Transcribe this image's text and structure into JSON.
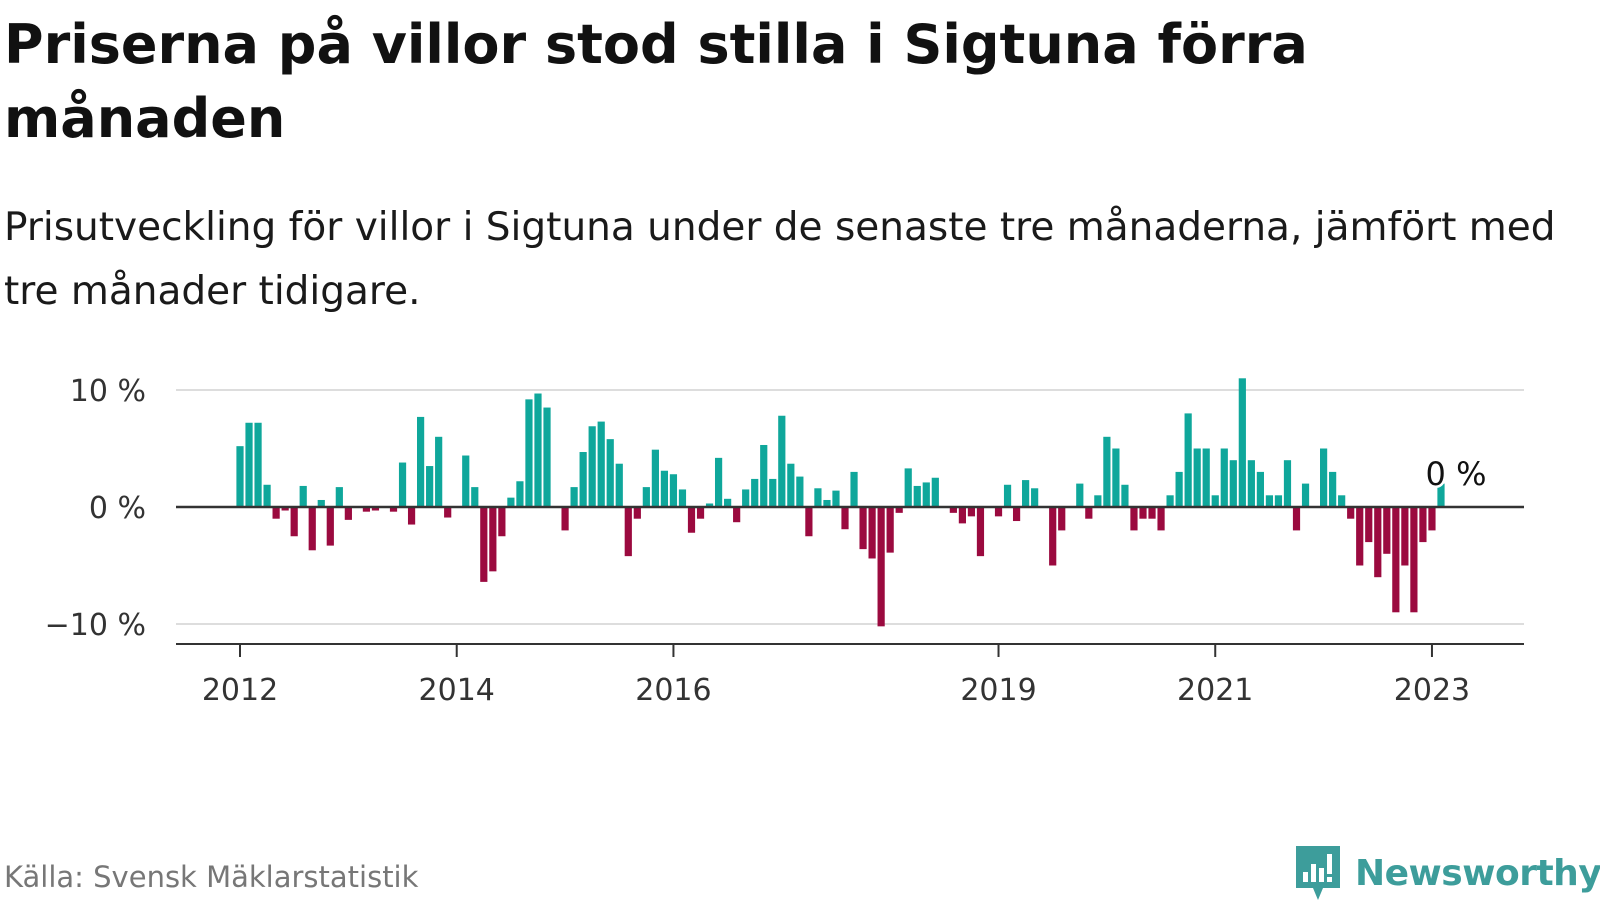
{
  "title": "Priserna på villor stod stilla i Sigtuna förra månaden",
  "subtitle": "Prisutveckling för villor i Sigtuna under de senaste tre månaderna, jämfört med tre månader tidigare.",
  "source": "Källa: Svensk Mäklarstatistik",
  "brand": "Newsworthy",
  "colors": {
    "positive": "#0fa79b",
    "negative": "#9b0a3f",
    "grid": "#dddddd",
    "zero_line": "#333333",
    "brand": "#3d9d9b"
  },
  "chart_data": {
    "type": "bar",
    "ylim": [
      -11.5,
      11
    ],
    "yticks": [
      {
        "value": 10,
        "label": "10 %"
      },
      {
        "value": 0,
        "label": "0 %"
      },
      {
        "value": -10,
        "label": "−10 %"
      }
    ],
    "xticks": [
      {
        "year": 2012,
        "index": 0
      },
      {
        "year": 2014,
        "index": 24
      },
      {
        "year": 2016,
        "index": 48
      },
      {
        "year": 2019,
        "index": 84
      },
      {
        "year": 2021,
        "index": 108
      },
      {
        "year": 2023,
        "index": 132
      }
    ],
    "annotation": {
      "index": 134,
      "label": "0 %"
    },
    "values": [
      5.2,
      7.2,
      7.2,
      1.9,
      -1.0,
      -0.3,
      -2.5,
      1.8,
      -3.7,
      0.6,
      -3.3,
      1.7,
      -1.1,
      0.0,
      -0.4,
      -0.3,
      0.0,
      -0.4,
      3.8,
      -1.5,
      7.7,
      3.5,
      6.0,
      -0.9,
      0.0,
      4.4,
      1.7,
      -6.4,
      -5.5,
      -2.5,
      0.8,
      2.2,
      9.2,
      9.7,
      8.5,
      0.0,
      -2.0,
      1.7,
      4.7,
      6.9,
      7.3,
      5.8,
      3.7,
      -4.2,
      -1.0,
      1.7,
      4.9,
      3.1,
      2.8,
      1.5,
      -2.2,
      -1.0,
      0.3,
      4.2,
      0.7,
      -1.3,
      1.5,
      2.4,
      5.3,
      2.4,
      7.8,
      3.7,
      2.6,
      -2.5,
      1.6,
      0.6,
      1.4,
      -1.9,
      3.0,
      -3.6,
      -4.4,
      -10.2,
      -3.9,
      -0.5,
      3.3,
      1.8,
      2.1,
      2.5,
      0.0,
      -0.5,
      -1.4,
      -0.8,
      -4.2,
      0.0,
      -0.8,
      1.9,
      -1.2,
      2.3,
      1.6,
      0.0,
      -5.0,
      -2.0,
      0.0,
      2.0,
      -1.0,
      1.0,
      6.0,
      5.0,
      1.9,
      -2.0,
      -1.0,
      -1.0,
      -2.0,
      1.0,
      3.0,
      8.0,
      5.0,
      5.0,
      1.0,
      5.0,
      4.0,
      11.0,
      4.0,
      3.0,
      1.0,
      1.0,
      4.0,
      -2.0,
      2.0,
      0.0,
      5.0,
      3.0,
      1.0,
      -1.0,
      -5.0,
      -3.0,
      -6.0,
      -4.0,
      -9.0,
      -5.0,
      -9.0,
      -3.0,
      -2.0,
      2.0
    ]
  }
}
